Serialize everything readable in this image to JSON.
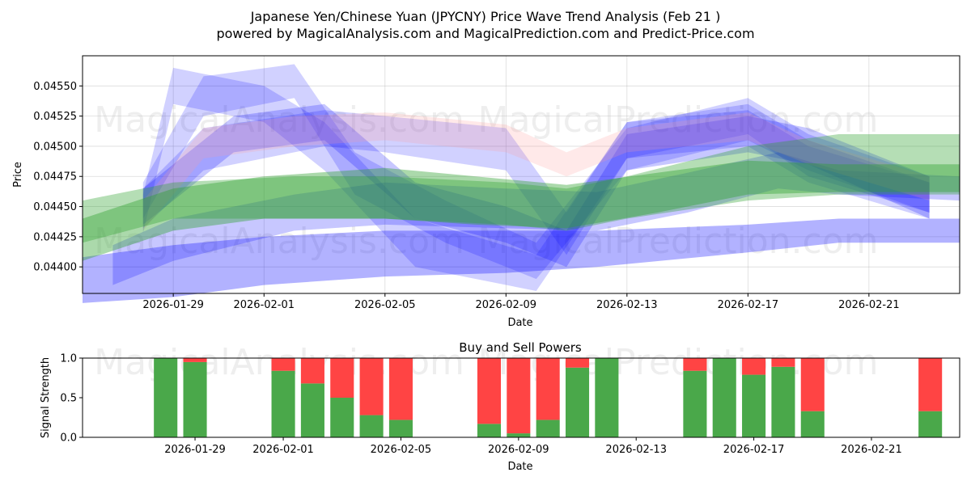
{
  "figure": {
    "title_line1": "Japanese Yen/Chinese Yuan (JPYCNY) Price Wave Trend Analysis (Feb 21 )",
    "title_line2": "powered by MagicalAnalysis.com and MagicalPrediction.com and Predict-Price.com",
    "watermark_left": "MagicalAnalysis.com",
    "watermark_right": "MagicalPrediction.com"
  },
  "colors": {
    "blue_band": "#0000ff",
    "red_band": "#ff9999",
    "green_band": "#2ca02c",
    "buy": "#4aa84a",
    "sell": "#ff4444"
  },
  "chart_data": [
    {
      "type": "area",
      "name": "price-wave",
      "title": "",
      "xlabel": "Date",
      "ylabel": "Price",
      "x_range": [
        "2026-01-26",
        "2026-02-24"
      ],
      "ylim": [
        0.04378,
        0.04575
      ],
      "x_ticks": [
        "2026-01-29",
        "2026-02-01",
        "2026-02-05",
        "2026-02-09",
        "2026-02-13",
        "2026-02-17",
        "2026-02-21"
      ],
      "y_ticks": [
        0.044,
        0.04425,
        0.0445,
        0.04475,
        0.045,
        0.04525,
        0.0455
      ],
      "y_tick_labels": [
        "0.04400",
        "0.04425",
        "0.04450",
        "0.04475",
        "0.04500",
        "0.04525",
        "0.04550"
      ],
      "grid": true,
      "series": [
        {
          "name": "blue-wave-1",
          "color": "blue",
          "opacity": 0.18,
          "x": [
            "2026-01-28",
            "2026-01-29",
            "2026-02-01",
            "2026-02-03",
            "2026-02-06",
            "2026-02-10",
            "2026-02-13",
            "2026-02-17",
            "2026-02-19",
            "2026-02-23"
          ],
          "low": [
            0.04428,
            0.04535,
            0.0452,
            0.0448,
            0.044,
            0.0438,
            0.0449,
            0.045,
            0.0447,
            0.0444
          ],
          "high": [
            0.0446,
            0.04565,
            0.0455,
            0.0452,
            0.0444,
            0.0441,
            0.0452,
            0.0453,
            0.045,
            0.0447
          ]
        },
        {
          "name": "blue-wave-2",
          "color": "blue",
          "opacity": 0.18,
          "x": [
            "2026-01-28",
            "2026-01-30",
            "2026-02-02",
            "2026-02-04",
            "2026-02-07",
            "2026-02-10",
            "2026-02-13",
            "2026-02-17",
            "2026-02-19",
            "2026-02-23"
          ],
          "low": [
            0.0444,
            0.04525,
            0.0454,
            0.0446,
            0.0442,
            0.0439,
            0.0448,
            0.04505,
            0.0448,
            0.04445
          ],
          "high": [
            0.0447,
            0.04558,
            0.04568,
            0.04495,
            0.04455,
            0.0442,
            0.04515,
            0.0454,
            0.0451,
            0.04475
          ]
        },
        {
          "name": "blue-wave-3",
          "color": "blue",
          "opacity": 0.18,
          "x": [
            "2026-01-28",
            "2026-01-30",
            "2026-02-03",
            "2026-02-05",
            "2026-02-09",
            "2026-02-11",
            "2026-02-13",
            "2026-02-17",
            "2026-02-19",
            "2026-02-23"
          ],
          "low": [
            0.04432,
            0.0448,
            0.045,
            0.04495,
            0.0448,
            0.0441,
            0.0449,
            0.0451,
            0.04475,
            0.04445
          ],
          "high": [
            0.04465,
            0.04515,
            0.0453,
            0.04525,
            0.04515,
            0.04445,
            0.0452,
            0.04535,
            0.04505,
            0.0447
          ]
        },
        {
          "name": "blue-wave-4",
          "color": "blue",
          "opacity": 0.22,
          "x": [
            "2026-01-28",
            "2026-01-31",
            "2026-02-03",
            "2026-02-06",
            "2026-02-09",
            "2026-02-11",
            "2026-02-13",
            "2026-02-17",
            "2026-02-19",
            "2026-02-23"
          ],
          "low": [
            0.04435,
            0.04495,
            0.04505,
            0.0444,
            0.0442,
            0.044,
            0.0448,
            0.04495,
            0.04485,
            0.0444
          ],
          "high": [
            0.04465,
            0.04525,
            0.04535,
            0.0447,
            0.0445,
            0.0443,
            0.0451,
            0.04525,
            0.04515,
            0.04475
          ]
        },
        {
          "name": "blue-wave-5",
          "color": "blue",
          "opacity": 0.22,
          "x": [
            "2026-01-27",
            "2026-01-29",
            "2026-02-02",
            "2026-02-05",
            "2026-02-09",
            "2026-02-12",
            "2026-02-15",
            "2026-02-18",
            "2026-02-20",
            "2026-02-24"
          ],
          "low": [
            0.04385,
            0.04405,
            0.0443,
            0.04435,
            0.04432,
            0.0443,
            0.04445,
            0.04465,
            0.0446,
            0.04455
          ],
          "high": [
            0.04418,
            0.0444,
            0.0446,
            0.0447,
            0.04465,
            0.04462,
            0.04478,
            0.04495,
            0.0448,
            0.04475
          ]
        },
        {
          "name": "blue-wave-6",
          "color": "blue",
          "opacity": 0.3,
          "x": [
            "2026-01-26",
            "2026-01-29",
            "2026-02-01",
            "2026-02-05",
            "2026-02-09",
            "2026-02-12",
            "2026-02-17",
            "2026-02-20",
            "2026-02-24"
          ],
          "low": [
            0.0437,
            0.04375,
            0.04385,
            0.04392,
            0.04395,
            0.044,
            0.04412,
            0.0442,
            0.0442
          ],
          "high": [
            0.04408,
            0.04418,
            0.04425,
            0.0443,
            0.0443,
            0.0443,
            0.04435,
            0.0444,
            0.0444
          ]
        },
        {
          "name": "red-wave-1",
          "color": "red",
          "opacity": 0.22,
          "x": [
            "2026-01-28",
            "2026-01-30",
            "2026-02-02",
            "2026-02-05",
            "2026-02-09",
            "2026-02-11",
            "2026-02-13",
            "2026-02-17",
            "2026-02-19",
            "2026-02-23"
          ],
          "low": [
            0.0443,
            0.0449,
            0.045,
            0.04505,
            0.04495,
            0.04475,
            0.04495,
            0.04505,
            0.04485,
            0.04455
          ],
          "high": [
            0.04455,
            0.04515,
            0.04525,
            0.04528,
            0.04518,
            0.04495,
            0.04515,
            0.04528,
            0.04505,
            0.04475
          ]
        },
        {
          "name": "green-wave-1",
          "color": "green",
          "opacity": 0.35,
          "x": [
            "2026-01-26",
            "2026-01-29",
            "2026-02-02",
            "2026-02-05",
            "2026-02-09",
            "2026-02-11",
            "2026-02-13",
            "2026-02-17",
            "2026-02-20",
            "2026-02-24"
          ],
          "low": [
            0.0442,
            0.0444,
            0.0444,
            0.0444,
            0.04435,
            0.0443,
            0.0444,
            0.04455,
            0.0446,
            0.0446
          ],
          "high": [
            0.04455,
            0.0447,
            0.04475,
            0.04475,
            0.0447,
            0.04465,
            0.04475,
            0.045,
            0.0451,
            0.0451
          ]
        },
        {
          "name": "green-wave-2",
          "color": "green",
          "opacity": 0.4,
          "x": [
            "2026-01-26",
            "2026-01-29",
            "2026-02-01",
            "2026-02-05",
            "2026-02-08",
            "2026-02-11",
            "2026-02-14",
            "2026-02-17",
            "2026-02-20",
            "2026-02-24"
          ],
          "low": [
            0.04405,
            0.0443,
            0.0444,
            0.0444,
            0.04435,
            0.04432,
            0.04445,
            0.0446,
            0.04462,
            0.04462
          ],
          "high": [
            0.0444,
            0.04465,
            0.04475,
            0.04482,
            0.04475,
            0.04468,
            0.04478,
            0.04488,
            0.04485,
            0.04485
          ]
        }
      ]
    },
    {
      "type": "bar",
      "name": "buy-sell-powers",
      "title": "Buy and Sell Powers",
      "xlabel": "Date",
      "ylabel": "Signal Strength",
      "x_range": [
        "2026-01-26",
        "2026-02-24"
      ],
      "ylim": [
        0,
        1
      ],
      "x_ticks": [
        "2026-01-29",
        "2026-02-01",
        "2026-02-05",
        "2026-02-09",
        "2026-02-13",
        "2026-02-17",
        "2026-02-21"
      ],
      "y_ticks": [
        0,
        0.5,
        1
      ],
      "y_tick_labels": [
        "0.0",
        "0.5",
        "1.0"
      ],
      "dates": [
        "2026-01-28",
        "2026-01-29",
        "2026-02-01",
        "2026-02-02",
        "2026-02-03",
        "2026-02-04",
        "2026-02-05",
        "2026-02-08",
        "2026-02-09",
        "2026-02-10",
        "2026-02-11",
        "2026-02-12",
        "2026-02-15",
        "2026-02-16",
        "2026-02-17",
        "2026-02-18",
        "2026-02-19",
        "2026-02-23"
      ],
      "series": [
        {
          "name": "Buy",
          "values": [
            1.0,
            0.95,
            0.84,
            0.68,
            0.5,
            0.28,
            0.22,
            0.17,
            0.05,
            0.22,
            0.88,
            1.0,
            0.84,
            1.0,
            0.79,
            0.89,
            0.33,
            0.33
          ]
        },
        {
          "name": "Sell",
          "values": [
            0.0,
            0.05,
            0.16,
            0.32,
            0.5,
            0.72,
            0.78,
            0.83,
            0.95,
            0.78,
            0.12,
            0.0,
            0.16,
            0.0,
            0.21,
            0.11,
            0.67,
            0.67
          ]
        }
      ]
    }
  ]
}
